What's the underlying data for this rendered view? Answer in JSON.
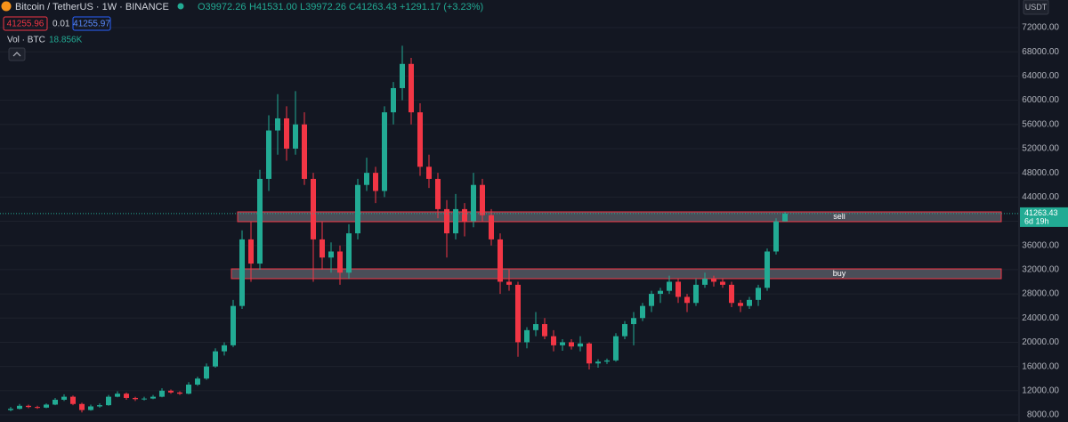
{
  "chart_data": {
    "type": "candlestick",
    "title": "Bitcoin / TetherUS · 1W · BINANCE",
    "ohlc_legend": [
      "O39972.26",
      "H41531.00",
      "L39972.26",
      "C41263.43",
      "+1291.17 (+3.23%)"
    ],
    "bid": "41255.96",
    "spread": "0.01",
    "ask": "41255.97",
    "volume_label": "Vol · BTC",
    "volume_value": "18.856K",
    "currency": "USDT",
    "countdown": "6d 19h",
    "up_color": "#22ab94",
    "down_color": "#f23645",
    "ylim": [
      6823,
      76561
    ],
    "yticks": [
      {
        "value": 8000,
        "label": "8000.00"
      },
      {
        "value": 12000,
        "label": "12000.00"
      },
      {
        "value": 16000,
        "label": "16000.00"
      },
      {
        "value": 20000,
        "label": "20000.00"
      },
      {
        "value": 24000,
        "label": "24000.00"
      },
      {
        "value": 28000,
        "label": "28000.00"
      },
      {
        "value": 32000,
        "label": "32000.00"
      },
      {
        "value": 36000,
        "label": "36000.00"
      },
      {
        "value": 40000,
        "label": "40000.00"
      },
      {
        "value": 44000,
        "label": "44000.00"
      },
      {
        "value": 48000,
        "label": "48000.00"
      },
      {
        "value": 52000,
        "label": "52000.00"
      },
      {
        "value": 56000,
        "label": "56000.00"
      },
      {
        "value": 60000,
        "label": "60000.00"
      },
      {
        "value": 64000,
        "label": "64000.00"
      },
      {
        "value": 68000,
        "label": "68000.00"
      },
      {
        "value": 72000,
        "label": "72000.00"
      }
    ],
    "zones": [
      {
        "label": "sell",
        "low": 39928,
        "high": 41546
      },
      {
        "label": "buy",
        "low": 30511,
        "high": 32129
      }
    ],
    "open": [
      8800,
      9000,
      9500,
      9300,
      9200,
      9700,
      10500,
      11000,
      9800,
      8800,
      9400,
      9600,
      11000,
      11500,
      10800,
      10600,
      10700,
      11000,
      12000,
      11700,
      11500,
      13000,
      14000,
      16000,
      18500,
      19500,
      26000,
      37000,
      33000,
      47000,
      55000,
      57000,
      52000,
      56000,
      47000,
      37000,
      34000,
      35000,
      31500,
      38000,
      46000,
      48000,
      45000,
      58000,
      62000,
      66000,
      58000,
      49000,
      47000,
      42000,
      38000,
      42000,
      40000,
      46000,
      41000,
      37000,
      30000,
      29500,
      20000,
      22000,
      23000,
      21000,
      19500,
      20000,
      19300,
      19800,
      16500,
      16800,
      17000,
      21000,
      23000,
      24000,
      26000,
      28000,
      28500,
      30000,
      27500,
      26500,
      29500,
      30500,
      30000,
      29500,
      26500,
      26000,
      27000,
      29000,
      35000,
      39972.26
    ],
    "high": [
      9300,
      9800,
      9700,
      9500,
      9900,
      10800,
      11400,
      11200,
      10000,
      9700,
      9900,
      11300,
      11900,
      11700,
      11000,
      11000,
      11300,
      12400,
      12200,
      11900,
      13400,
      14300,
      16500,
      19000,
      20000,
      27000,
      38500,
      40000,
      48500,
      57500,
      61000,
      59000,
      61500,
      58000,
      48000,
      40000,
      36500,
      36000,
      39500,
      47000,
      50500,
      49000,
      59000,
      63000,
      69000,
      67000,
      59500,
      51000,
      48000,
      43500,
      44500,
      43000,
      48000,
      47000,
      42000,
      38000,
      32000,
      30000,
      22500,
      25000,
      24000,
      22000,
      20500,
      20500,
      21000,
      20000,
      17200,
      17300,
      21500,
      23500,
      25000,
      26500,
      28500,
      29000,
      31000,
      30500,
      28000,
      30500,
      31500,
      31000,
      30500,
      30000,
      27000,
      27500,
      29500,
      35500,
      40500,
      41531
    ],
    "low": [
      8600,
      8900,
      9100,
      9000,
      9100,
      9600,
      10300,
      9600,
      8400,
      8700,
      9200,
      9500,
      10900,
      10500,
      10300,
      10400,
      10600,
      10900,
      11500,
      11300,
      11400,
      12800,
      13800,
      15800,
      17800,
      19200,
      25500,
      30000,
      32000,
      45000,
      51000,
      50000,
      51000,
      46000,
      30000,
      32000,
      31500,
      29500,
      30500,
      37000,
      45000,
      43000,
      44000,
      56000,
      60000,
      56000,
      47500,
      45500,
      40500,
      34000,
      37000,
      37500,
      39000,
      40000,
      36000,
      28000,
      28500,
      17600,
      19000,
      21000,
      20500,
      18500,
      18600,
      18800,
      18500,
      15500,
      15800,
      16400,
      16800,
      20500,
      19500,
      23500,
      25000,
      26500,
      28000,
      26500,
      25000,
      26000,
      29000,
      29200,
      29000,
      25800,
      25000,
      25500,
      26000,
      28500,
      34500,
      39972.26
    ],
    "close": [
      9000,
      9500,
      9300,
      9200,
      9700,
      10500,
      11000,
      9800,
      8800,
      9400,
      9600,
      11000,
      11500,
      10800,
      10600,
      10700,
      11000,
      12000,
      11700,
      11500,
      13000,
      14000,
      16000,
      18500,
      19500,
      26000,
      37000,
      33000,
      47000,
      55000,
      57000,
      52000,
      56000,
      47000,
      37000,
      34000,
      35000,
      31500,
      38000,
      46000,
      48000,
      45000,
      58000,
      62000,
      66000,
      58000,
      49000,
      47000,
      42000,
      38000,
      42000,
      40000,
      46000,
      41000,
      37000,
      30000,
      29500,
      20000,
      22000,
      23000,
      21000,
      19500,
      20000,
      19300,
      19800,
      16500,
      16800,
      17000,
      21000,
      23000,
      24000,
      26000,
      28000,
      28500,
      30000,
      27500,
      26500,
      29500,
      30500,
      30000,
      29500,
      26500,
      26000,
      27000,
      29000,
      35000,
      39972.26,
      41263.43
    ]
  }
}
